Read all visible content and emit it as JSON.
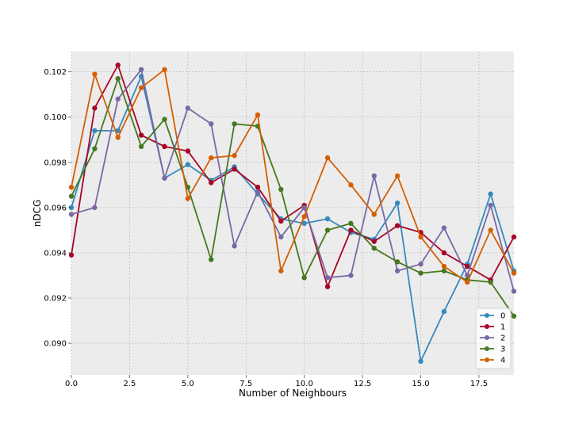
{
  "chart_data": {
    "type": "line",
    "title": "",
    "xlabel": "Number of Neighbours",
    "ylabel": "nDCG",
    "xlim": [
      0,
      19
    ],
    "ylim": [
      0.0886,
      0.1029
    ],
    "xticks": [
      0.0,
      2.5,
      5.0,
      7.5,
      10.0,
      12.5,
      15.0,
      17.5
    ],
    "xtick_labels": [
      "0.0",
      "2.5",
      "5.0",
      "7.5",
      "10.0",
      "12.5",
      "15.0",
      "17.5"
    ],
    "yticks": [
      0.09,
      0.092,
      0.094,
      0.096,
      0.098,
      0.1,
      0.102
    ],
    "ytick_labels": [
      "0.090",
      "0.092",
      "0.094",
      "0.096",
      "0.098",
      "0.100",
      "0.102"
    ],
    "grid": true,
    "legend_position": "lower-right",
    "x": [
      0,
      1,
      2,
      3,
      4,
      5,
      6,
      7,
      8,
      9,
      10,
      11,
      12,
      13,
      14,
      15,
      16,
      17,
      18,
      19
    ],
    "series": [
      {
        "name": "0",
        "color": "#348abd",
        "values": [
          0.096,
          0.0994,
          0.0994,
          0.1018,
          0.0973,
          0.0979,
          0.0972,
          0.0978,
          0.0966,
          0.0955,
          0.0953,
          0.0955,
          0.0949,
          0.0946,
          0.0962,
          0.0892,
          0.0914,
          0.0935,
          0.0966,
          0.0932
        ]
      },
      {
        "name": "1",
        "color": "#a60628",
        "values": [
          0.0939,
          0.1004,
          0.1023,
          0.0992,
          0.0987,
          0.0985,
          0.0971,
          0.0977,
          0.0969,
          0.0954,
          0.0961,
          0.0925,
          0.095,
          0.0945,
          0.0952,
          0.0949,
          0.094,
          0.0934,
          0.0928,
          0.0947
        ]
      },
      {
        "name": "2",
        "color": "#7a68a6",
        "values": [
          0.0957,
          0.096,
          0.1008,
          0.1021,
          0.0973,
          0.1004,
          0.0997,
          0.0943,
          0.0967,
          0.0947,
          0.096,
          0.0929,
          0.093,
          0.0974,
          0.0932,
          0.0935,
          0.0951,
          0.093,
          0.0961,
          0.0923
        ]
      },
      {
        "name": "3",
        "color": "#467821",
        "values": [
          0.0965,
          0.0986,
          0.1017,
          0.0987,
          0.0999,
          0.0969,
          0.0937,
          0.0997,
          0.0996,
          0.0968,
          0.0929,
          0.095,
          0.0953,
          0.0942,
          0.0936,
          0.0931,
          0.0932,
          0.0928,
          0.0927,
          0.0912
        ]
      },
      {
        "name": "4",
        "color": "#d55e00",
        "values": [
          0.0969,
          0.1019,
          0.0991,
          0.1013,
          0.1021,
          0.0964,
          0.0982,
          0.0983,
          0.1001,
          0.0932,
          0.0956,
          0.0982,
          0.097,
          0.0957,
          0.0974,
          0.0947,
          0.0934,
          0.0927,
          0.095,
          0.0931
        ]
      }
    ]
  }
}
